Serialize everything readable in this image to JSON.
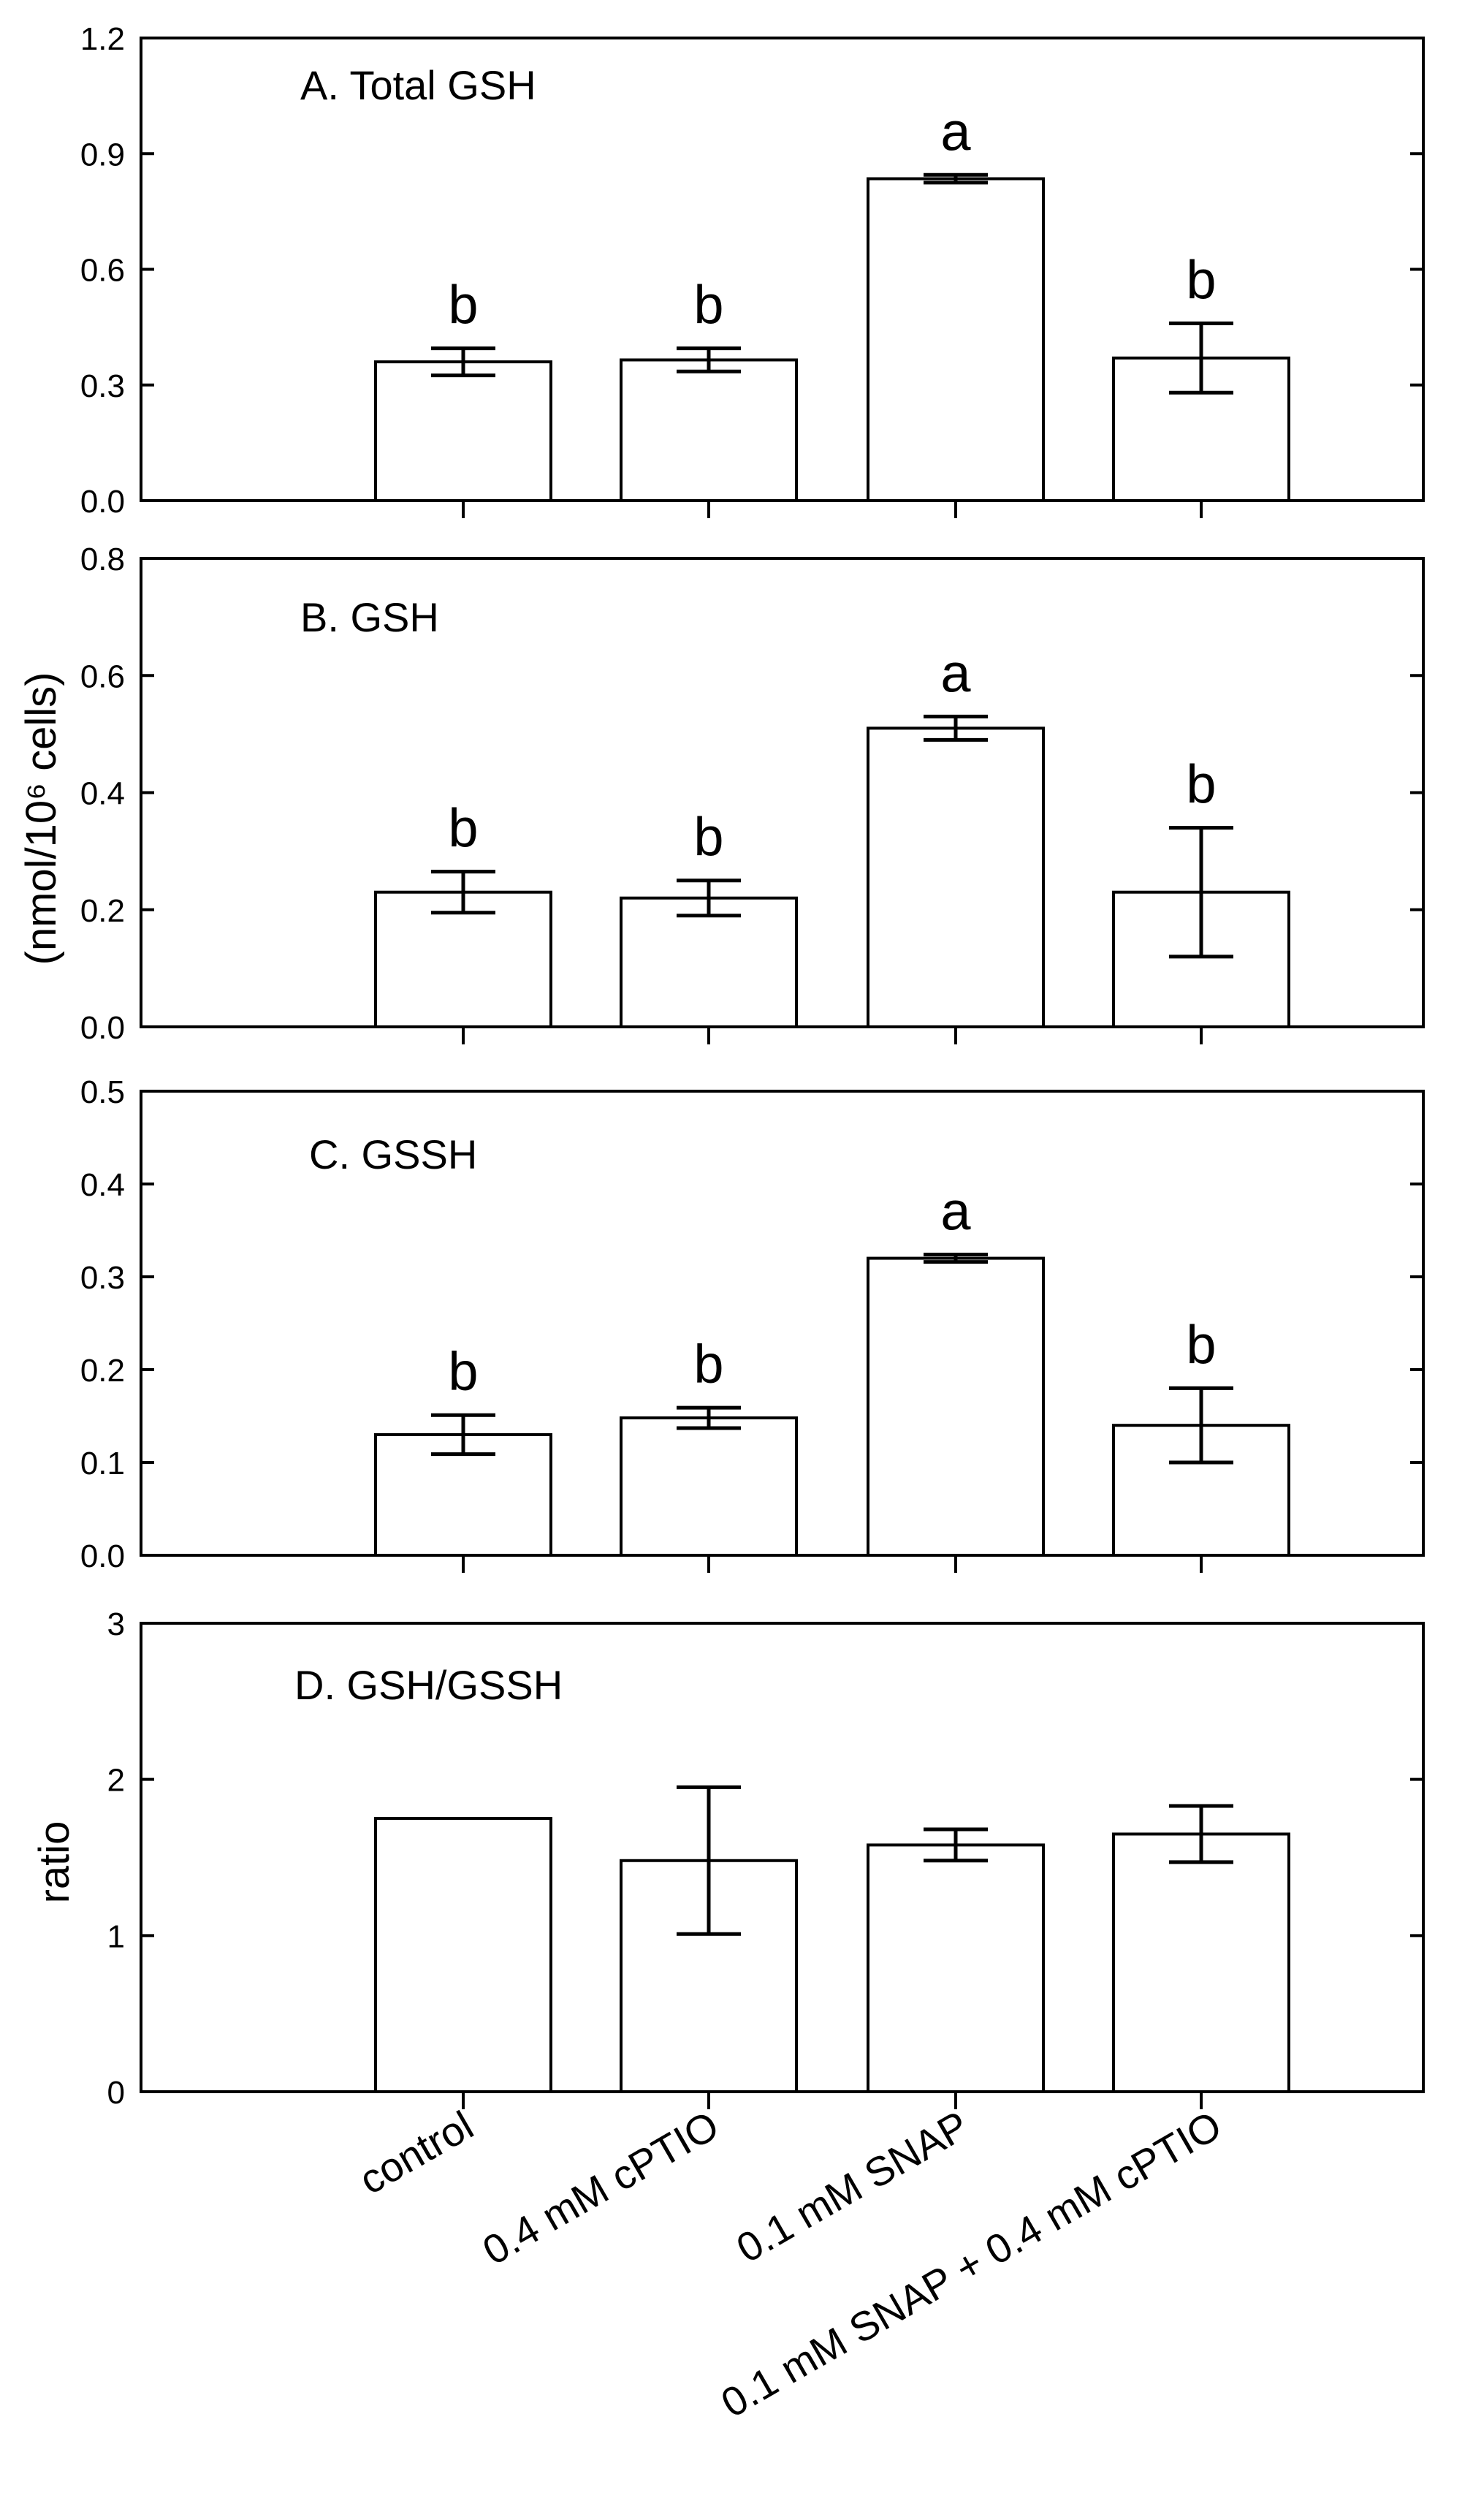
{
  "figure": {
    "shared_ylabel": "(nmol/10⁶ cells)",
    "x_categories": [
      "control",
      "0.4 mM cPTIO",
      "0.1 mM SNAP",
      "0.1 mM SNAP + 0.4 mM cPTIO"
    ]
  },
  "chart_data": [
    {
      "type": "bar",
      "title": "A. Total GSH",
      "categories": [
        "control",
        "0.4 mM cPTIO",
        "0.1 mM SNAP",
        "0.1 mM SNAP + 0.4 mM cPTIO"
      ],
      "values": [
        0.36,
        0.365,
        0.835,
        0.37
      ],
      "errors": [
        0.035,
        0.03,
        0.01,
        0.09
      ],
      "significance": [
        "b",
        "b",
        "a",
        "b"
      ],
      "ylim": [
        0,
        1.2
      ],
      "yticks": [
        0.0,
        0.3,
        0.6,
        0.9,
        1.2
      ],
      "ytick_labels": [
        "0.0",
        "0.3",
        "0.6",
        "0.9",
        "1.2"
      ],
      "ylabel": "(nmol/10⁶ cells)",
      "xlabel": ""
    },
    {
      "type": "bar",
      "title": "B. GSH",
      "categories": [
        "control",
        "0.4 mM cPTIO",
        "0.1 mM SNAP",
        "0.1 mM SNAP + 0.4 mM cPTIO"
      ],
      "values": [
        0.23,
        0.22,
        0.51,
        0.23
      ],
      "errors": [
        0.035,
        0.03,
        0.02,
        0.11
      ],
      "significance": [
        "b",
        "b",
        "a",
        "b"
      ],
      "ylim": [
        0,
        0.8
      ],
      "yticks": [
        0.0,
        0.2,
        0.4,
        0.6,
        0.8
      ],
      "ytick_labels": [
        "0.0",
        "0.2",
        "0.4",
        "0.6",
        "0.8"
      ],
      "ylabel": "(nmol/10⁶ cells)",
      "xlabel": ""
    },
    {
      "type": "bar",
      "title": "C. GSSH",
      "categories": [
        "control",
        "0.4 mM cPTIO",
        "0.1 mM SNAP",
        "0.1 mM SNAP + 0.4 mM cPTIO"
      ],
      "values": [
        0.13,
        0.148,
        0.32,
        0.14
      ],
      "errors": [
        0.021,
        0.011,
        0.004,
        0.04
      ],
      "significance": [
        "b",
        "b",
        "a",
        "b"
      ],
      "ylim": [
        0,
        0.5
      ],
      "yticks": [
        0.0,
        0.1,
        0.2,
        0.3,
        0.4,
        0.5
      ],
      "ytick_labels": [
        "0.0",
        "0.1",
        "0.2",
        "0.3",
        "0.4",
        "0.5"
      ],
      "ylabel": "(nmol/10⁶ cells)",
      "xlabel": ""
    },
    {
      "type": "bar",
      "title": "D. GSH/GSSH",
      "categories": [
        "control",
        "0.4 mM cPTIO",
        "0.1 mM SNAP",
        "0.1 mM SNAP + 0.4 mM cPTIO"
      ],
      "values": [
        1.75,
        1.48,
        1.58,
        1.65
      ],
      "errors": [
        0,
        0.47,
        0.1,
        0.18
      ],
      "significance": [
        "",
        "",
        "",
        ""
      ],
      "ylim": [
        0,
        3
      ],
      "yticks": [
        0,
        1,
        2,
        3
      ],
      "ytick_labels": [
        "0",
        "1",
        "2",
        "3"
      ],
      "ylabel": "ratio",
      "xlabel": ""
    }
  ]
}
